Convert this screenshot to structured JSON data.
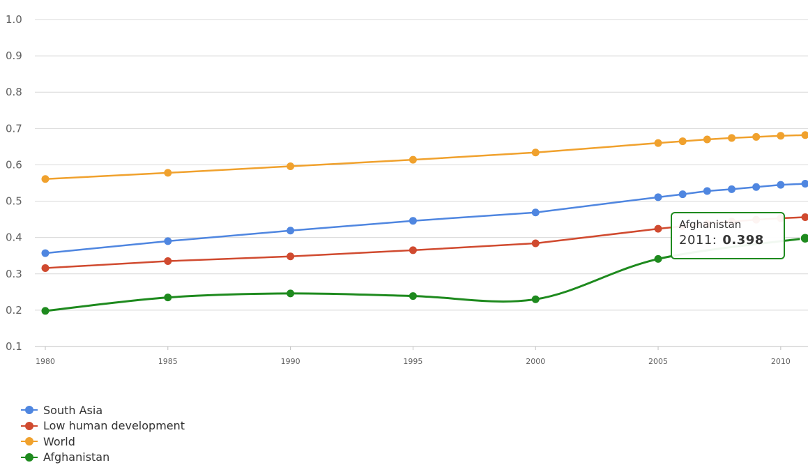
{
  "chart_data": {
    "type": "line",
    "title": "",
    "xlabel": "",
    "ylabel": "",
    "ylim": [
      0.1,
      1.0
    ],
    "yticks": [
      "0.1",
      "0.2",
      "0.3",
      "0.4",
      "0.5",
      "0.6",
      "0.7",
      "0.8",
      "0.9",
      "1.0"
    ],
    "xticks": [
      "1980",
      "1985",
      "1990",
      "1995",
      "2000",
      "2005",
      "2010"
    ],
    "xlim": [
      1980,
      2011
    ],
    "grid": true,
    "legend_position": "bottom-left",
    "x": [
      1980,
      1985,
      1990,
      1995,
      2000,
      2005,
      2006,
      2007,
      2008,
      2009,
      2010,
      2011
    ],
    "series": [
      {
        "name": "World",
        "color": "#f0a12d",
        "smooth": false,
        "values": [
          0.561,
          0.578,
          0.596,
          0.614,
          0.634,
          0.66,
          0.665,
          0.67,
          0.674,
          0.677,
          0.68,
          0.682
        ]
      },
      {
        "name": "South Asia",
        "color": "#4f86e0",
        "smooth": false,
        "values": [
          0.357,
          0.39,
          0.419,
          0.446,
          0.469,
          0.511,
          0.519,
          0.528,
          0.533,
          0.539,
          0.545,
          0.548
        ]
      },
      {
        "name": "Low human development",
        "color": "#d04a2f",
        "smooth": false,
        "values": [
          0.316,
          0.335,
          0.348,
          0.365,
          0.384,
          0.424,
          0.431,
          0.438,
          0.444,
          0.449,
          0.453,
          0.456
        ]
      },
      {
        "name": "Afghanistan",
        "color": "#1e8a1e",
        "smooth": true,
        "values": [
          0.198,
          0.235,
          0.246,
          0.239,
          0.23,
          0.341,
          null,
          null,
          null,
          null,
          null,
          0.398
        ]
      }
    ],
    "legend_order": [
      "South Asia",
      "Low human development",
      "World",
      "Afghanistan"
    ],
    "tooltip": {
      "series": "Afghanistan",
      "year": "2011:",
      "value": "0.398"
    }
  }
}
